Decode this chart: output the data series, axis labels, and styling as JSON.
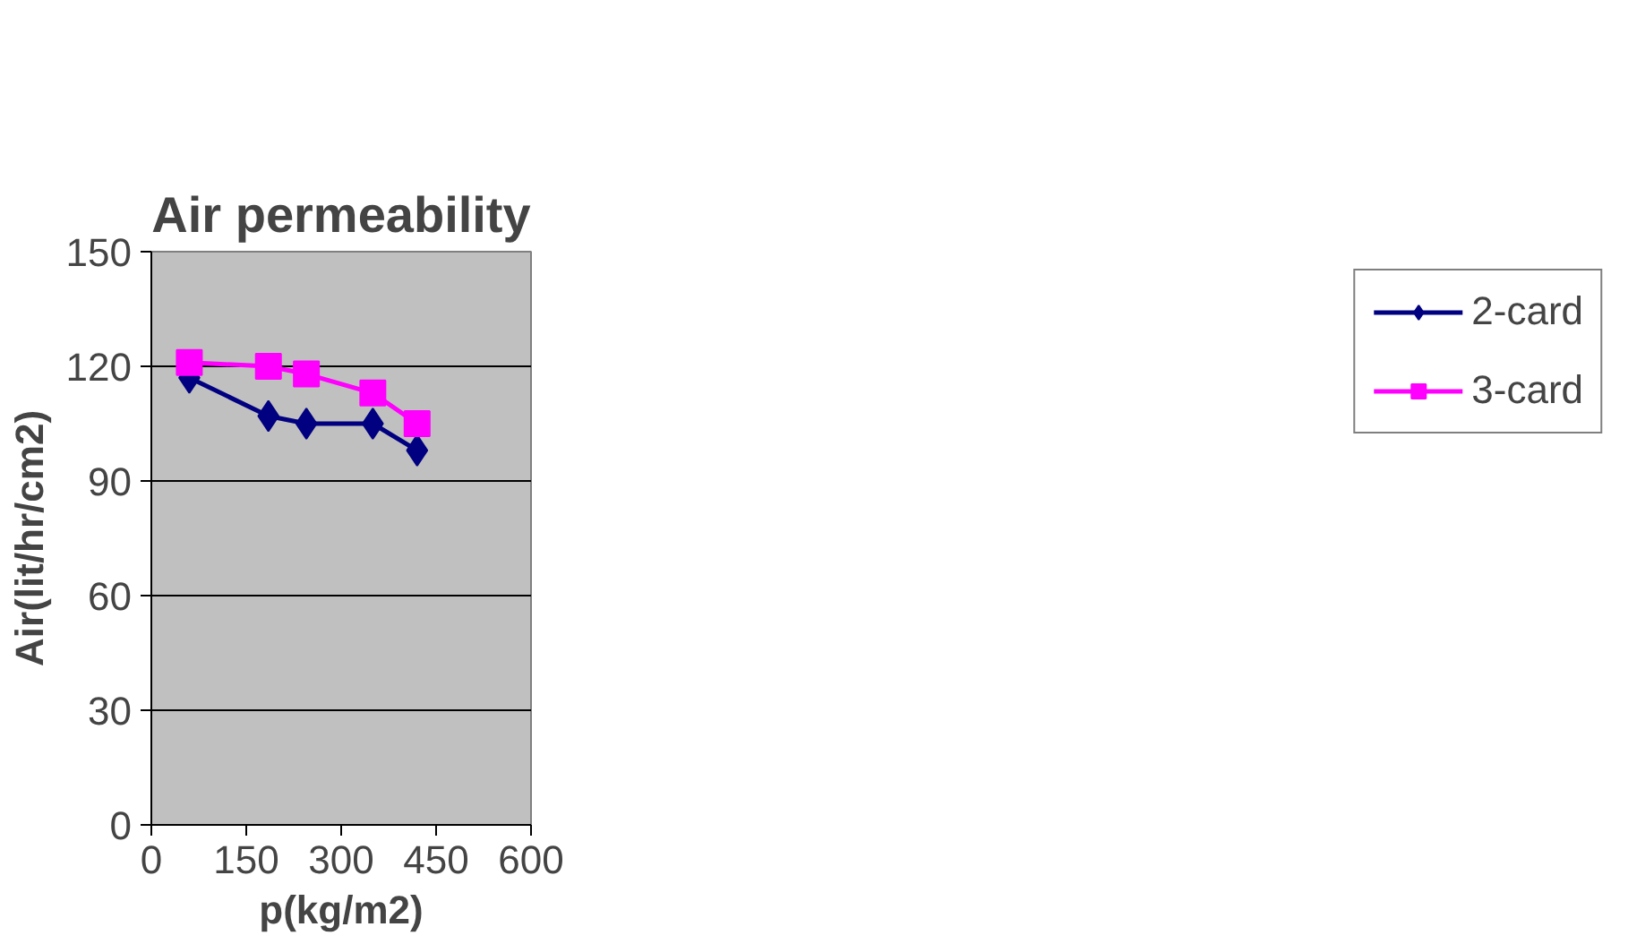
{
  "chart_data": {
    "type": "line",
    "title": "Air permeability",
    "xlabel": "p(kg/m2)",
    "ylabel": "Air(lit/hr/cm2)",
    "x": [
      60,
      185,
      245,
      350,
      420
    ],
    "series": [
      {
        "name": "2-card",
        "color": "#000080",
        "marker": "diamond",
        "values": [
          117,
          107,
          105,
          105,
          98
        ]
      },
      {
        "name": "3-card",
        "color": "#ff00ff",
        "marker": "square",
        "values": [
          121,
          120,
          118,
          113,
          105
        ]
      }
    ],
    "xlim": [
      0,
      600
    ],
    "xticks": [
      0,
      150,
      300,
      450,
      600
    ],
    "ylim": [
      0,
      150
    ],
    "yticks": [
      0,
      30,
      60,
      90,
      120,
      150
    ],
    "grid": "y",
    "legend": "right"
  }
}
